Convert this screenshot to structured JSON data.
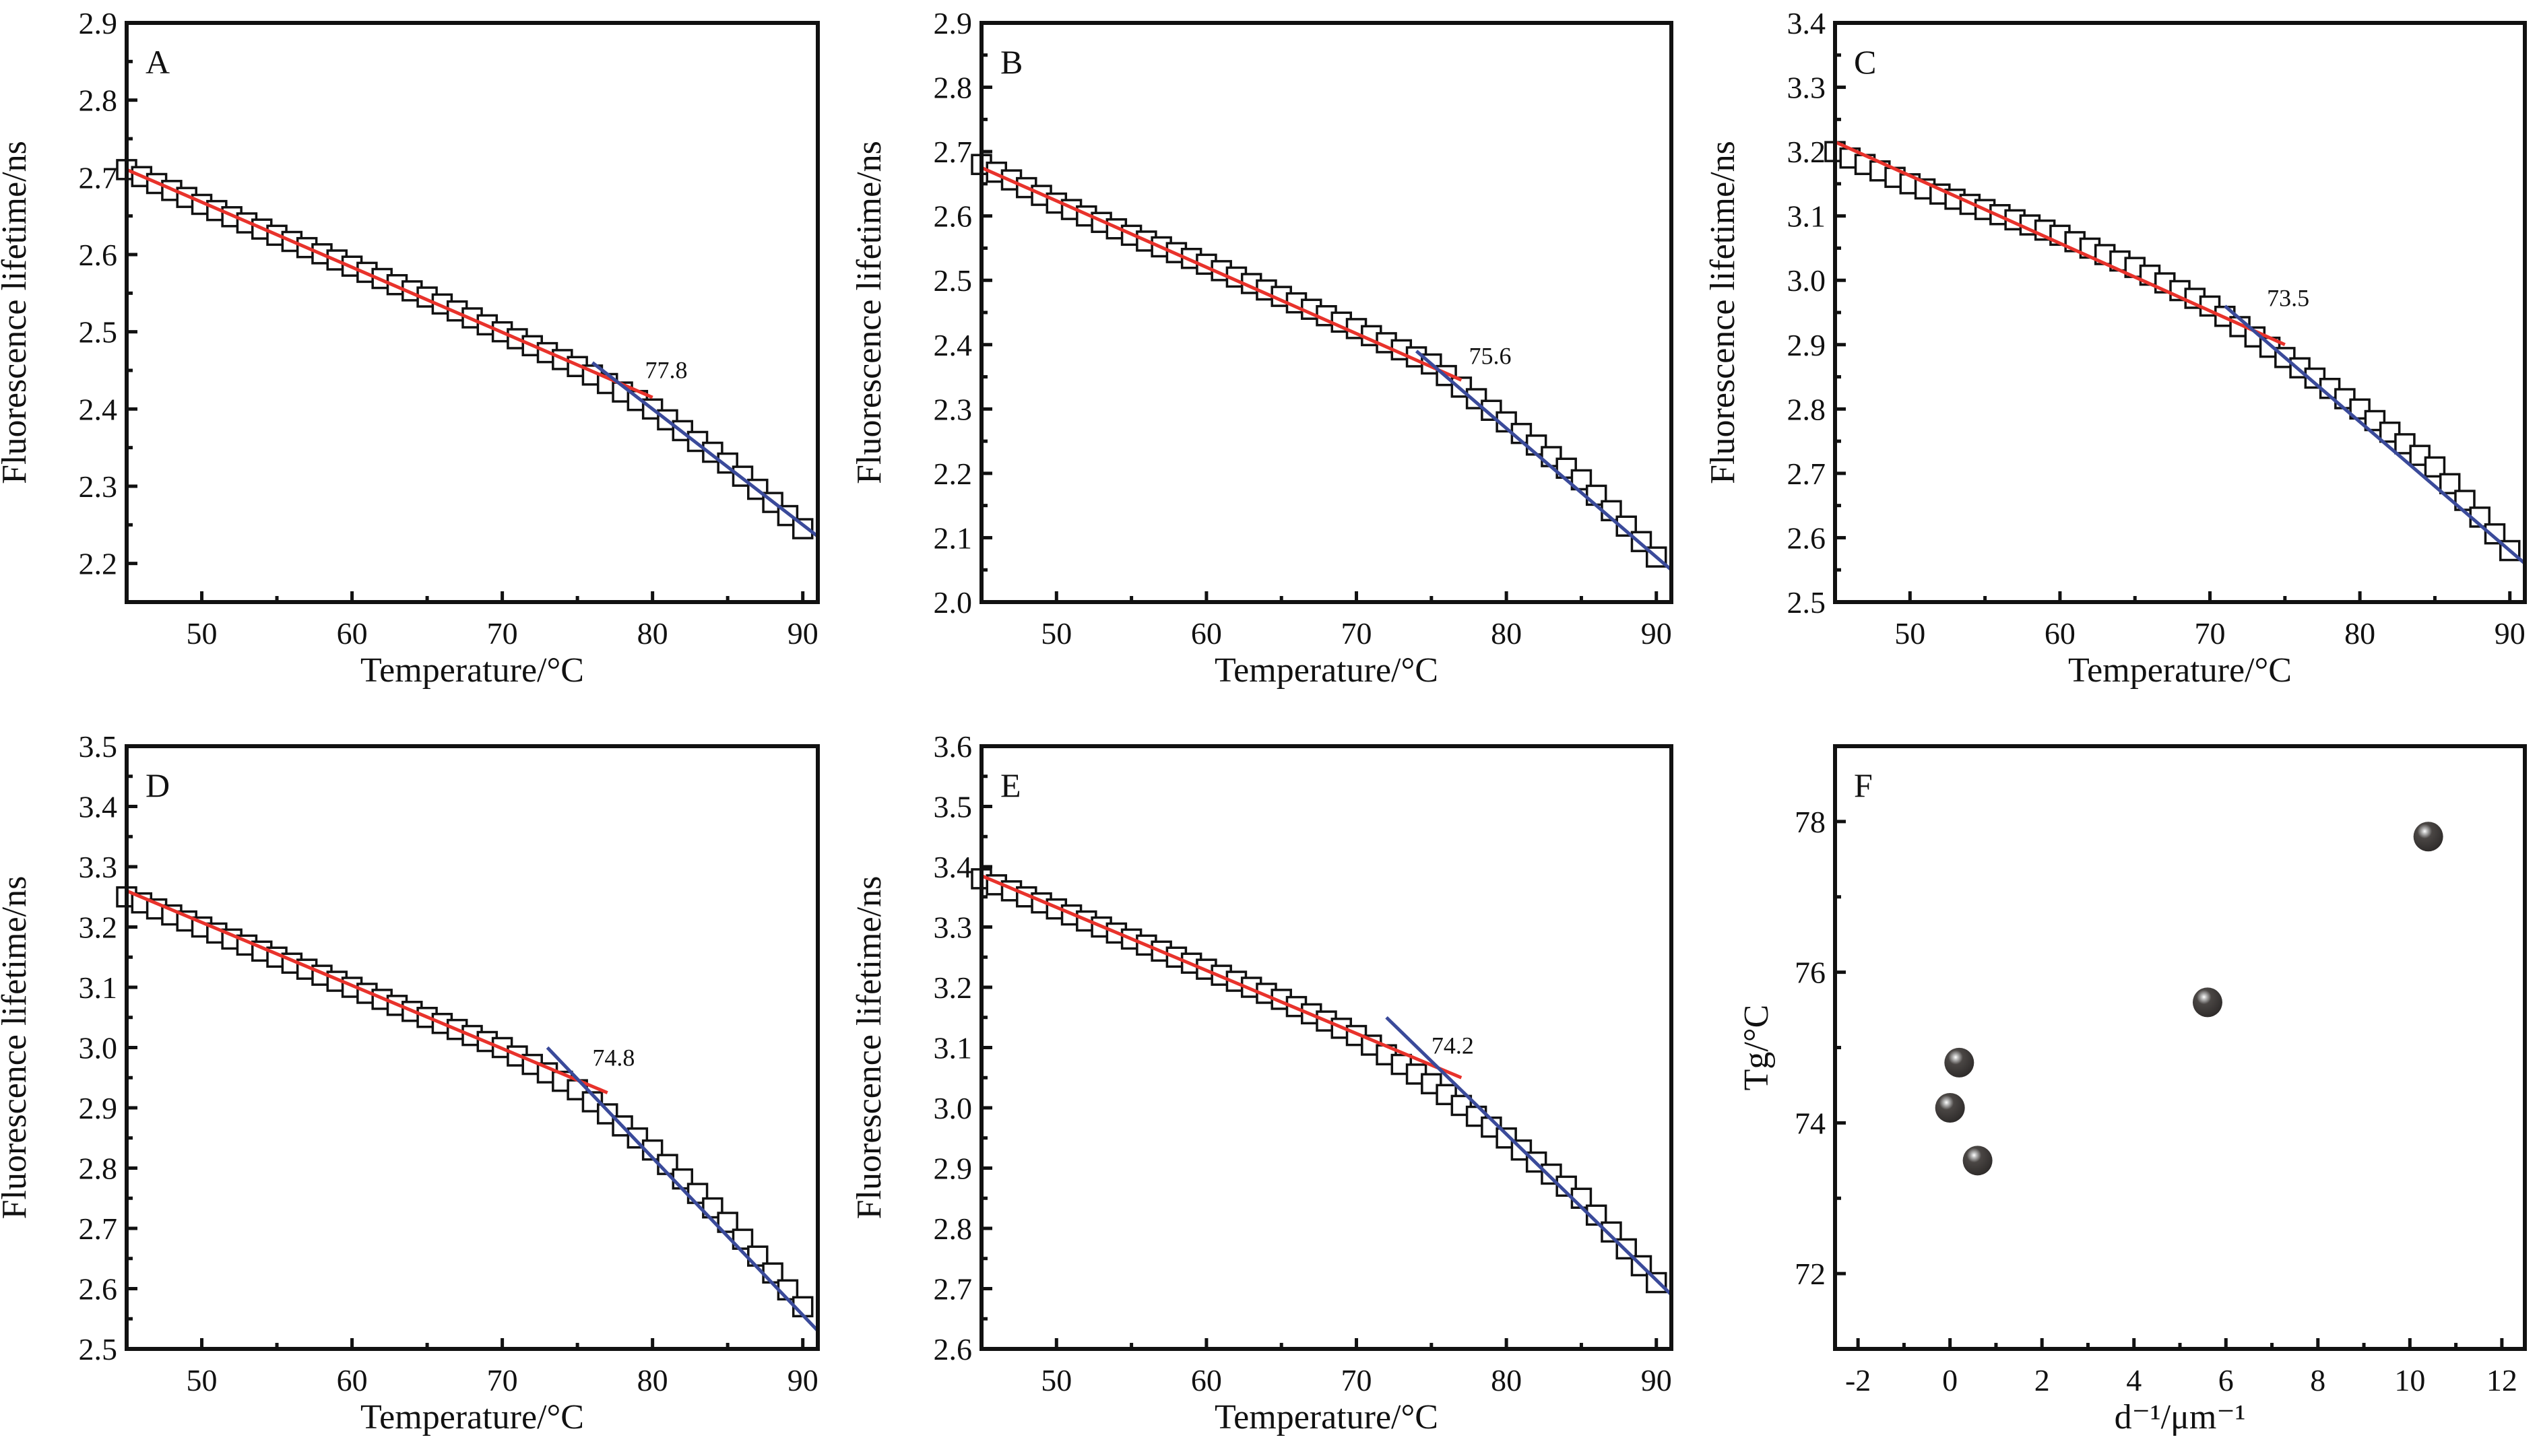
{
  "chart_data": [
    {
      "id": "A",
      "type": "scatter",
      "panel_label": "A",
      "xlabel": "Temperature/°C",
      "ylabel": "Fluorescence lifetime/ns",
      "xlim": [
        45,
        91
      ],
      "ylim": [
        2.15,
        2.9
      ],
      "xticks": [
        50,
        60,
        70,
        80,
        90
      ],
      "yticks": [
        2.2,
        2.3,
        2.4,
        2.5,
        2.6,
        2.7,
        2.8,
        2.9
      ],
      "x_start": 45,
      "x_step": 1,
      "y": [
        2.71,
        2.701,
        2.692,
        2.683,
        2.674,
        2.665,
        2.657,
        2.649,
        2.641,
        2.633,
        2.625,
        2.617,
        2.609,
        2.601,
        2.593,
        2.585,
        2.577,
        2.569,
        2.561,
        2.553,
        2.545,
        2.536,
        2.527,
        2.518,
        2.509,
        2.5,
        2.491,
        2.482,
        2.473,
        2.464,
        2.455,
        2.444,
        2.433,
        2.422,
        2.411,
        2.4,
        2.386,
        2.372,
        2.358,
        2.344,
        2.33,
        2.313,
        2.296,
        2.279,
        2.262,
        2.245
      ],
      "fit_low": [
        [
          45,
          2.71
        ],
        [
          80,
          2.415
        ]
      ],
      "fit_high": [
        [
          76,
          2.46
        ],
        [
          91,
          2.235
        ]
      ],
      "annotation": "77.8",
      "annotation_at": [
        79.5,
        2.44
      ]
    },
    {
      "id": "B",
      "type": "scatter",
      "panel_label": "B",
      "xlabel": "Temperature/°C",
      "ylabel": "Fluorescence lifetime/ns",
      "xlim": [
        45,
        91
      ],
      "ylim": [
        2.0,
        2.9
      ],
      "xticks": [
        50,
        60,
        70,
        80,
        90
      ],
      "yticks": [
        2.0,
        2.1,
        2.2,
        2.3,
        2.4,
        2.5,
        2.6,
        2.7,
        2.8,
        2.9
      ],
      "x_start": 45,
      "x_step": 1,
      "y": [
        2.68,
        2.668,
        2.656,
        2.644,
        2.632,
        2.62,
        2.61,
        2.6,
        2.59,
        2.58,
        2.57,
        2.561,
        2.552,
        2.543,
        2.534,
        2.525,
        2.515,
        2.505,
        2.495,
        2.485,
        2.475,
        2.465,
        2.455,
        2.445,
        2.435,
        2.425,
        2.414,
        2.403,
        2.392,
        2.381,
        2.37,
        2.352,
        2.334,
        2.316,
        2.298,
        2.28,
        2.262,
        2.244,
        2.226,
        2.208,
        2.19,
        2.166,
        2.142,
        2.118,
        2.094,
        2.07
      ],
      "fit_low": [
        [
          45,
          2.675
        ],
        [
          77,
          2.345
        ]
      ],
      "fit_high": [
        [
          74,
          2.39
        ],
        [
          91,
          2.05
        ]
      ],
      "annotation": "75.6",
      "annotation_at": [
        77.5,
        2.37
      ]
    },
    {
      "id": "C",
      "type": "scatter",
      "panel_label": "C",
      "xlabel": "Temperature/°C",
      "ylabel": "Fluorescence lifetime/ns",
      "xlim": [
        45,
        91
      ],
      "ylim": [
        2.5,
        3.4
      ],
      "xticks": [
        50,
        60,
        70,
        80,
        90
      ],
      "yticks": [
        2.5,
        2.6,
        2.7,
        2.8,
        2.9,
        3.0,
        3.1,
        3.2,
        3.3,
        3.4
      ],
      "x_start": 45,
      "x_step": 1,
      "y": [
        3.2,
        3.19,
        3.18,
        3.17,
        3.16,
        3.15,
        3.142,
        3.134,
        3.126,
        3.118,
        3.11,
        3.102,
        3.094,
        3.086,
        3.078,
        3.07,
        3.06,
        3.05,
        3.04,
        3.03,
        3.02,
        3.008,
        2.996,
        2.984,
        2.972,
        2.96,
        2.944,
        2.928,
        2.912,
        2.896,
        2.88,
        2.864,
        2.848,
        2.832,
        2.816,
        2.8,
        2.782,
        2.764,
        2.746,
        2.728,
        2.71,
        2.684,
        2.658,
        2.632,
        2.606,
        2.58
      ],
      "fit_low": [
        [
          45,
          3.215
        ],
        [
          75,
          2.9
        ]
      ],
      "fit_high": [
        [
          71,
          2.96
        ],
        [
          91,
          2.56
        ]
      ],
      "annotation": "73.5",
      "annotation_at": [
        73.8,
        2.96
      ]
    },
    {
      "id": "D",
      "type": "scatter",
      "panel_label": "D",
      "xlabel": "Temperature/°C",
      "ylabel": "Fluorescence lifetime/ns",
      "xlim": [
        45,
        91
      ],
      "ylim": [
        2.5,
        3.5
      ],
      "xticks": [
        50,
        60,
        70,
        80,
        90
      ],
      "yticks": [
        2.5,
        2.6,
        2.7,
        2.8,
        2.9,
        3.0,
        3.1,
        3.2,
        3.3,
        3.4,
        3.5
      ],
      "x_start": 45,
      "x_step": 1,
      "y": [
        3.25,
        3.24,
        3.23,
        3.22,
        3.21,
        3.2,
        3.19,
        3.18,
        3.17,
        3.16,
        3.15,
        3.14,
        3.13,
        3.12,
        3.11,
        3.1,
        3.09,
        3.08,
        3.07,
        3.06,
        3.05,
        3.04,
        3.03,
        3.02,
        3.01,
        3.0,
        2.986,
        2.972,
        2.958,
        2.944,
        2.93,
        2.91,
        2.89,
        2.87,
        2.85,
        2.83,
        2.806,
        2.782,
        2.758,
        2.734,
        2.71,
        2.682,
        2.654,
        2.626,
        2.598,
        2.57
      ],
      "fit_low": [
        [
          45,
          3.26
        ],
        [
          77,
          2.925
        ]
      ],
      "fit_high": [
        [
          73,
          3.0
        ],
        [
          91,
          2.53
        ]
      ],
      "annotation": "74.8",
      "annotation_at": [
        76,
        2.97
      ]
    },
    {
      "id": "E",
      "type": "scatter",
      "panel_label": "E",
      "xlabel": "Temperature/°C",
      "ylabel": "Fluorescence lifetime/ns",
      "xlim": [
        45,
        91
      ],
      "ylim": [
        2.6,
        3.6
      ],
      "xticks": [
        50,
        60,
        70,
        80,
        90
      ],
      "yticks": [
        2.6,
        2.7,
        2.8,
        2.9,
        3.0,
        3.1,
        3.2,
        3.3,
        3.4,
        3.5,
        3.6
      ],
      "x_start": 45,
      "x_step": 1,
      "y": [
        3.38,
        3.37,
        3.36,
        3.35,
        3.34,
        3.33,
        3.32,
        3.31,
        3.3,
        3.29,
        3.28,
        3.27,
        3.26,
        3.25,
        3.24,
        3.23,
        3.22,
        3.21,
        3.2,
        3.19,
        3.18,
        3.168,
        3.156,
        3.144,
        3.132,
        3.12,
        3.104,
        3.088,
        3.072,
        3.056,
        3.04,
        3.022,
        3.004,
        2.986,
        2.968,
        2.95,
        2.93,
        2.91,
        2.89,
        2.87,
        2.85,
        2.822,
        2.794,
        2.766,
        2.738,
        2.71
      ],
      "fit_low": [
        [
          45,
          3.385
        ],
        [
          77,
          3.05
        ]
      ],
      "fit_high": [
        [
          72,
          3.15
        ],
        [
          91,
          2.69
        ]
      ],
      "annotation": "74.2",
      "annotation_at": [
        75,
        3.09
      ]
    },
    {
      "id": "F",
      "type": "scatter",
      "panel_label": "F",
      "xlabel": "d⁻¹/μm⁻¹",
      "ylabel": "Tg/°C",
      "xlim": [
        -2.5,
        12.5
      ],
      "ylim": [
        71,
        79
      ],
      "xticks": [
        -2,
        0,
        2,
        4,
        6,
        8,
        10,
        12
      ],
      "yticks": [
        72,
        74,
        76,
        78
      ],
      "points": [
        [
          10.4,
          77.8
        ],
        [
          5.6,
          75.6
        ],
        [
          0.2,
          74.8
        ],
        [
          0.0,
          74.2
        ],
        [
          0.6,
          73.5
        ]
      ]
    }
  ],
  "colors": {
    "fit_low": "#e8322b",
    "fit_high": "#3a4a9a",
    "axis": "#111111",
    "marker": "#111111",
    "ball": "#3d3a38"
  }
}
